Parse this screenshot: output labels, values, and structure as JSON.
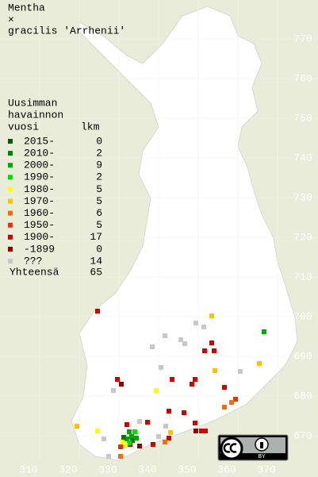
{
  "title": [
    "Mentha",
    "×",
    "gracilis 'Arrhenii'"
  ],
  "legend": {
    "heading": [
      "Uusimman",
      "havainnon",
      "vuosi"
    ],
    "count_heading": "lkm",
    "entries": [
      {
        "label": "2015-",
        "count": "0",
        "color": "#005a00"
      },
      {
        "label": "2010-",
        "count": "2",
        "color": "#008000"
      },
      {
        "label": "2000-",
        "count": "9",
        "color": "#00a800"
      },
      {
        "label": "1990-",
        "count": "2",
        "color": "#00e000"
      },
      {
        "label": "1980-",
        "count": "5",
        "color": "#ffff00"
      },
      {
        "label": "1970-",
        "count": "5",
        "color": "#ffc000"
      },
      {
        "label": "1960-",
        "count": "6",
        "color": "#f07010"
      },
      {
        "label": "1950-",
        "count": "5",
        "color": "#e83000"
      },
      {
        "label": "1900-",
        "count": "17",
        "color": "#d00000"
      },
      {
        "label": "-1899",
        "count": "0",
        "color": "#900000"
      },
      {
        "label": "???",
        "count": "14",
        "color": "#c8c8c8"
      }
    ],
    "total_label": "Yhteensä",
    "total": "65"
  },
  "grid": {
    "x_labels": [
      310,
      320,
      330,
      340,
      350,
      360,
      370
    ],
    "y_labels": [
      670,
      680,
      690,
      700,
      710,
      720,
      730,
      740,
      750,
      760,
      770
    ]
  },
  "points": [
    [
      324.6,
      701.4,
      8
    ],
    [
      351.6,
      691.4,
      8
    ],
    [
      354,
      691.4,
      8
    ],
    [
      353.4,
      693.4,
      8
    ],
    [
      353.4,
      700.2,
      5
    ],
    [
      351.4,
      697.4,
      10
    ],
    [
      349.4,
      698.4,
      10
    ],
    [
      341.6,
      695.2,
      10
    ],
    [
      345.6,
      694.2,
      10
    ],
    [
      346.6,
      693.2,
      10
    ],
    [
      338.4,
      692.4,
      10
    ],
    [
      366.6,
      696.2,
      2
    ],
    [
      365.4,
      688.2,
      5
    ],
    [
      360.6,
      686.2,
      10
    ],
    [
      354.2,
      686.4,
      5
    ],
    [
      340.6,
      687.2,
      10
    ],
    [
      329.6,
      684.2,
      8
    ],
    [
      330.6,
      683,
      9
    ],
    [
      328.6,
      681.4,
      10
    ],
    [
      343.4,
      684.2,
      8
    ],
    [
      349.2,
      684.2,
      8
    ],
    [
      348.4,
      683,
      8
    ],
    [
      356.6,
      682.2,
      8
    ],
    [
      339.4,
      681.4,
      4
    ],
    [
      359.4,
      679.2,
      7
    ],
    [
      358.4,
      678.4,
      6
    ],
    [
      356.6,
      677.2,
      6
    ],
    [
      346.4,
      675.8,
      8
    ],
    [
      342.6,
      676.2,
      8
    ],
    [
      335.2,
      673.6,
      10
    ],
    [
      332,
      672.8,
      8
    ],
    [
      337.2,
      673.4,
      8
    ],
    [
      349.2,
      673.2,
      8
    ],
    [
      349.4,
      671.2,
      9
    ],
    [
      350.8,
      671.2,
      8
    ],
    [
      351.8,
      671.2,
      8
    ],
    [
      342.6,
      669.4,
      8
    ],
    [
      341.6,
      668.4,
      6
    ],
    [
      343,
      670.8,
      5
    ],
    [
      319.4,
      672.4,
      5
    ],
    [
      324.6,
      671.2,
      4
    ],
    [
      326.2,
      669.2,
      10
    ],
    [
      331,
      668.6,
      4
    ],
    [
      330.4,
      667.2,
      7
    ],
    [
      330.4,
      664.8,
      6
    ],
    [
      332.8,
      667.8,
      8
    ],
    [
      335.2,
      667.4,
      9
    ],
    [
      338.6,
      667.8,
      8
    ],
    [
      333.2,
      669.8,
      2
    ],
    [
      332.6,
      671,
      2
    ],
    [
      334,
      671,
      3
    ],
    [
      333.4,
      668.8,
      1
    ],
    [
      332,
      669.2,
      2
    ],
    [
      334.4,
      669.4,
      2
    ],
    [
      332.6,
      668.2,
      3
    ],
    [
      341.8,
      672.4,
      10
    ],
    [
      340,
      669.8,
      10
    ],
    [
      331.6,
      667.6,
      4
    ],
    [
      327.4,
      664.8,
      10
    ],
    [
      331.2,
      669.6,
      1
    ]
  ],
  "license": {
    "badge": "BY"
  }
}
